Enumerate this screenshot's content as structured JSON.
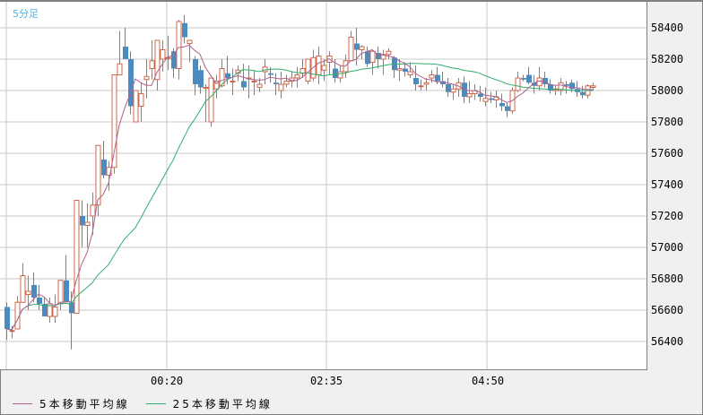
{
  "chart_data": {
    "type": "candlestick",
    "title": "5分足",
    "ylim": [
      56270,
      58570
    ],
    "yticks": [
      58400,
      58200,
      58000,
      57800,
      57600,
      57400,
      57200,
      57000,
      56800,
      56600,
      56400
    ],
    "xticks": [
      {
        "label": "00:20",
        "index": 30
      },
      {
        "label": "02:35",
        "index": 60
      },
      {
        "label": "04:50",
        "index": 90
      }
    ],
    "grid": true,
    "legend_position": "bottom-left",
    "colors": {
      "up": "#d0664a",
      "down": "#4a8cc0",
      "ma5": "#b0608e",
      "ma25": "#2fae6c",
      "grid": "#c8c8c8",
      "title": "#4ab4e6"
    },
    "legend": [
      "5本移動平均線",
      "25本移動平均線"
    ],
    "candles": [
      [
        56620,
        56650,
        56410,
        56480
      ],
      [
        56470,
        56500,
        56420,
        56470
      ],
      [
        56480,
        56690,
        56480,
        56650
      ],
      [
        56650,
        56900,
        56650,
        56820
      ],
      [
        56700,
        56820,
        56600,
        56720
      ],
      [
        56760,
        56840,
        56650,
        56680
      ],
      [
        56680,
        56760,
        56600,
        56640
      ],
      [
        56640,
        56680,
        56560,
        56560
      ],
      [
        56560,
        56680,
        56520,
        56640
      ],
      [
        56560,
        56700,
        56520,
        56620
      ],
      [
        56640,
        56790,
        56600,
        56790
      ],
      [
        56790,
        56950,
        56650,
        56650
      ],
      [
        56650,
        56720,
        56350,
        56580
      ],
      [
        56580,
        57300,
        56580,
        57300
      ],
      [
        57200,
        57300,
        57000,
        57140
      ],
      [
        57140,
        57280,
        57000,
        57160
      ],
      [
        57200,
        57350,
        57080,
        57270
      ],
      [
        57270,
        57640,
        57200,
        57650
      ],
      [
        57560,
        57680,
        57440,
        57460
      ],
      [
        57460,
        57550,
        57360,
        57510
      ],
      [
        57510,
        58100,
        57470,
        58100
      ],
      [
        58100,
        58380,
        58100,
        58170
      ],
      [
        58280,
        58400,
        58200,
        58200
      ],
      [
        58200,
        58250,
        57850,
        57900
      ],
      [
        57800,
        57900,
        57800,
        58000
      ],
      [
        57900,
        58050,
        57800,
        57980
      ],
      [
        58070,
        58200,
        57950,
        58090
      ],
      [
        58140,
        58320,
        58070,
        58190
      ],
      [
        58070,
        58310,
        58000,
        58320
      ],
      [
        58200,
        58320,
        58120,
        58260
      ],
      [
        58210,
        58350,
        58130,
        58210
      ],
      [
        58250,
        58270,
        58080,
        58140
      ],
      [
        58140,
        58450,
        58070,
        58440
      ],
      [
        58430,
        58480,
        58300,
        58340
      ],
      [
        58300,
        58320,
        58180,
        58320
      ],
      [
        58200,
        58220,
        57970,
        58040
      ],
      [
        58130,
        58160,
        57980,
        58020
      ],
      [
        58020,
        58040,
        57800,
        58020
      ],
      [
        57800,
        58080,
        57770,
        58080
      ],
      [
        58010,
        58100,
        57950,
        58060
      ],
      [
        58030,
        58200,
        58020,
        58140
      ],
      [
        58110,
        58220,
        58040,
        58080
      ],
      [
        58060,
        58140,
        57970,
        58060
      ],
      [
        58110,
        58160,
        58060,
        58130
      ],
      [
        58060,
        58170,
        58000,
        58020
      ],
      [
        58080,
        58160,
        57950,
        58080
      ],
      [
        58060,
        58130,
        57970,
        58060
      ],
      [
        58020,
        58080,
        57990,
        58040
      ],
      [
        58120,
        58200,
        58040,
        58150
      ],
      [
        58110,
        58150,
        58050,
        58100
      ],
      [
        58050,
        58110,
        57970,
        58040
      ],
      [
        58000,
        58120,
        57950,
        58040
      ],
      [
        58040,
        58100,
        58020,
        58060
      ],
      [
        58060,
        58120,
        58020,
        58080
      ],
      [
        58080,
        58150,
        58020,
        58100
      ],
      [
        58110,
        58200,
        58080,
        58140
      ],
      [
        58060,
        58200,
        58040,
        58200
      ],
      [
        58080,
        58260,
        58060,
        58210
      ],
      [
        58100,
        58280,
        58040,
        58220
      ],
      [
        58130,
        58200,
        58060,
        58160
      ],
      [
        58180,
        58250,
        58100,
        58220
      ],
      [
        58140,
        58200,
        58050,
        58080
      ],
      [
        58080,
        58160,
        58050,
        58120
      ],
      [
        58120,
        58230,
        58080,
        58190
      ],
      [
        58190,
        58380,
        58190,
        58340
      ],
      [
        58300,
        58400,
        58160,
        58260
      ],
      [
        58260,
        58290,
        58200,
        58280
      ],
      [
        58250,
        58280,
        58150,
        58170
      ],
      [
        58180,
        58260,
        58100,
        58250
      ],
      [
        58240,
        58280,
        58140,
        58200
      ],
      [
        58200,
        58260,
        58100,
        58230
      ],
      [
        58230,
        58270,
        58200,
        58250
      ],
      [
        58210,
        58220,
        58080,
        58130
      ],
      [
        58130,
        58200,
        58060,
        58140
      ],
      [
        58140,
        58180,
        58090,
        58120
      ],
      [
        58100,
        58180,
        58080,
        58120
      ],
      [
        58080,
        58160,
        58000,
        58040
      ],
      [
        58030,
        58070,
        58000,
        58030
      ],
      [
        58040,
        58080,
        58000,
        58050
      ],
      [
        58080,
        58130,
        58050,
        58100
      ],
      [
        58100,
        58150,
        58040,
        58060
      ],
      [
        58060,
        58120,
        58020,
        58040
      ],
      [
        58040,
        58080,
        57960,
        57990
      ],
      [
        57990,
        58040,
        57940,
        58010
      ],
      [
        58010,
        58080,
        57960,
        58050
      ],
      [
        58050,
        58090,
        57920,
        57960
      ],
      [
        57960,
        58060,
        57920,
        57980
      ],
      [
        57980,
        58040,
        57940,
        58000
      ],
      [
        57980,
        58030,
        57930,
        57960
      ],
      [
        57930,
        58020,
        57900,
        57950
      ],
      [
        57950,
        57990,
        57920,
        57940
      ],
      [
        57940,
        58000,
        57890,
        57960
      ],
      [
        57920,
        57980,
        57870,
        57900
      ],
      [
        57900,
        57920,
        57830,
        57870
      ],
      [
        57870,
        58020,
        57850,
        58000
      ],
      [
        58000,
        58120,
        57990,
        58080
      ],
      [
        58080,
        58100,
        58060,
        58070
      ],
      [
        58100,
        58150,
        58040,
        58050
      ],
      [
        58050,
        58100,
        57980,
        58030
      ],
      [
        58030,
        58150,
        58000,
        58080
      ],
      [
        58080,
        58120,
        58020,
        58040
      ],
      [
        58040,
        58070,
        57980,
        58000
      ],
      [
        58000,
        58030,
        57970,
        58010
      ],
      [
        58000,
        58080,
        57970,
        58050
      ],
      [
        58040,
        58060,
        57980,
        58030
      ],
      [
        58050,
        58070,
        57990,
        58010
      ],
      [
        58010,
        58060,
        57960,
        57990
      ],
      [
        57990,
        58030,
        57950,
        57970
      ],
      [
        57970,
        58040,
        57950,
        58030
      ],
      [
        58020,
        58050,
        58000,
        58030
      ]
    ]
  },
  "title": "5分足",
  "y_axis": {
    "labels": [
      "58400",
      "58200",
      "58000",
      "57800",
      "57600",
      "57400",
      "57200",
      "57000",
      "56800",
      "56600",
      "56400"
    ]
  },
  "x_axis": {
    "labels": [
      "00:20",
      "02:35",
      "04:50"
    ]
  },
  "legend": {
    "ma5": "5本移動平均線",
    "ma25": "25本移動平均線"
  }
}
